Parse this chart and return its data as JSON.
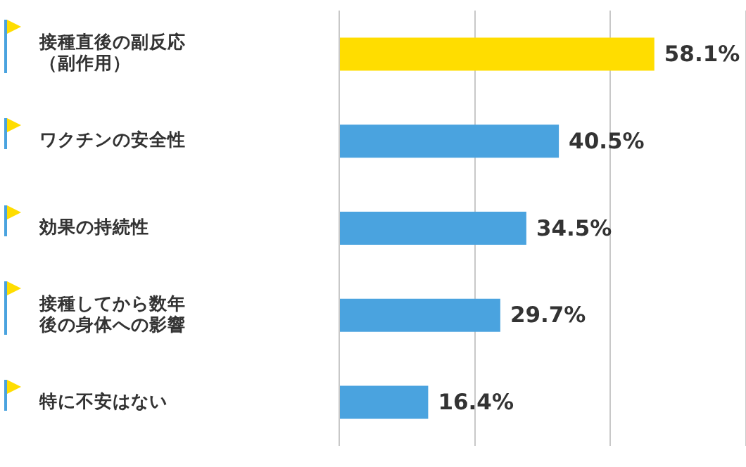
{
  "chart_data": {
    "type": "bar",
    "orientation": "horizontal",
    "categories": [
      "接種直後の副反応（副作用）",
      "ワクチンの安全性",
      "効果の持続性",
      "接種してから数年後の身体への影響",
      "特に不安はない"
    ],
    "values": [
      58.1,
      40.5,
      34.5,
      29.7,
      16.4
    ],
    "colors": [
      "#ffdd00",
      "#4aa3df",
      "#4aa3df",
      "#4aa3df",
      "#4aa3df"
    ],
    "value_labels": [
      "58.1%",
      "40.5%",
      "34.5%",
      "29.7%",
      "16.4%"
    ],
    "xlim": [
      0,
      75
    ],
    "xticks": [
      {
        "value": 0,
        "label": null
      },
      {
        "value": 25,
        "label": null
      },
      {
        "value": 50,
        "label": null
      },
      {
        "value": 75,
        "label": null
      }
    ],
    "grid": "x",
    "tick_labels": "y",
    "legend": false
  }
}
